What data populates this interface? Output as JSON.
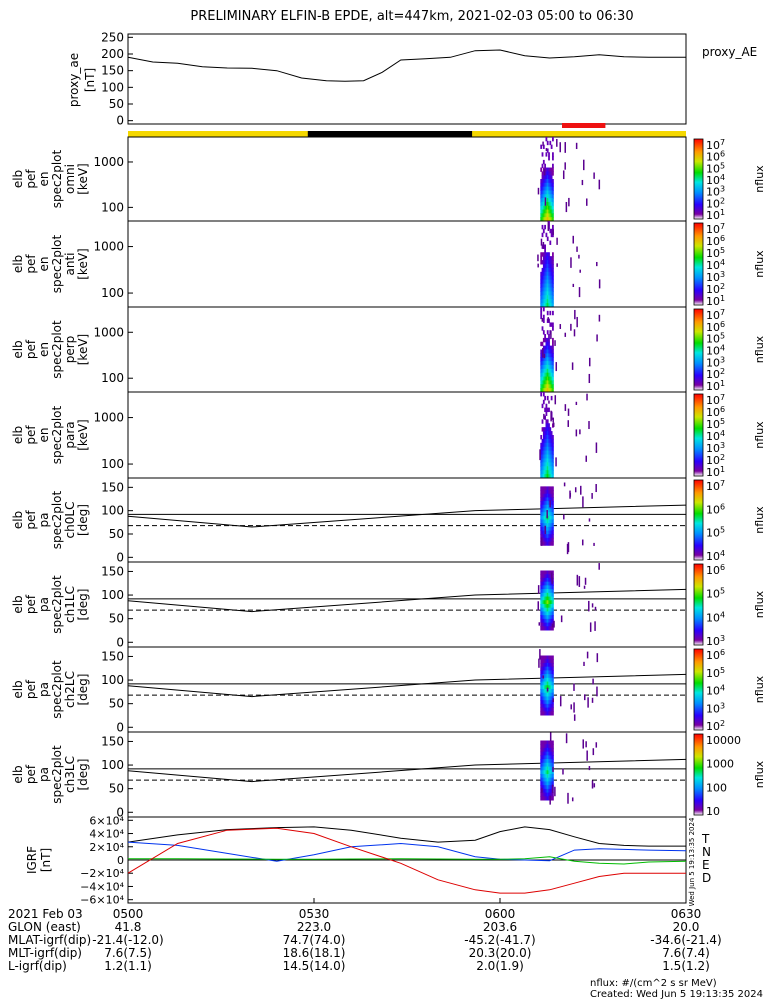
{
  "title": "PRELIMINARY ELFIN-B EPDE, alt=447km, 2021-02-03 05:00 to 06:30",
  "colors": {
    "yellow": "#f5d800",
    "black": "#000000",
    "red": "#ee1111",
    "bx": "#000000",
    "bn": "#0033ee",
    "be": "#00bb00",
    "bd": "#dd0000"
  },
  "chart_data": [
    {
      "type": "line",
      "panel": "proxy_ae",
      "ylabel_lines": [
        "proxy_ae",
        "[nT]"
      ],
      "legend": "proxy_AE",
      "yticks": [
        "250",
        "200",
        "150",
        "100",
        "50",
        "0"
      ],
      "ylim": [
        -10,
        260
      ],
      "x_min": [
        0,
        4,
        8,
        12,
        16,
        20,
        24,
        28,
        32,
        35,
        38,
        41,
        44,
        48,
        52,
        56,
        60,
        64,
        68,
        72,
        76,
        80,
        84,
        88,
        90
      ],
      "values": [
        190,
        176,
        172,
        162,
        158,
        157,
        150,
        128,
        120,
        118,
        120,
        145,
        182,
        186,
        190,
        210,
        212,
        195,
        188,
        192,
        198,
        192,
        190,
        190,
        190
      ]
    },
    {
      "type": "heatmap",
      "panel": "omni",
      "ylabel_lines": [
        "elb",
        "pef",
        "en",
        "spec2plot",
        "omni",
        "[keV]"
      ],
      "yticks": [
        "1000",
        "100"
      ],
      "colorbar_label": "nflux",
      "colorbar_ticks": [
        "10^7",
        "10^6",
        "10^5",
        "10^4",
        "10^3",
        "10^2",
        "10^1"
      ]
    },
    {
      "type": "heatmap",
      "panel": "anti",
      "ylabel_lines": [
        "elb",
        "pef",
        "en",
        "spec2plot",
        "anti",
        "[keV]"
      ],
      "yticks": [
        "1000",
        "100"
      ],
      "colorbar_label": "nflux",
      "colorbar_ticks": [
        "10^7",
        "10^6",
        "10^5",
        "10^4",
        "10^3",
        "10^2",
        "10^1"
      ]
    },
    {
      "type": "heatmap",
      "panel": "perp",
      "ylabel_lines": [
        "elb",
        "pef",
        "en",
        "spec2plot",
        "perp",
        "[keV]"
      ],
      "yticks": [
        "1000",
        "100"
      ],
      "colorbar_label": "nflux",
      "colorbar_ticks": [
        "10^7",
        "10^6",
        "10^5",
        "10^4",
        "10^3",
        "10^2",
        "10^1"
      ]
    },
    {
      "type": "heatmap",
      "panel": "para",
      "ylabel_lines": [
        "elb",
        "pef",
        "en",
        "spec2plot",
        "para",
        "[keV]"
      ],
      "yticks": [
        "1000",
        "100"
      ],
      "colorbar_label": "nflux",
      "colorbar_ticks": [
        "10^7",
        "10^6",
        "10^5",
        "10^4",
        "10^3",
        "10^2",
        "10^1"
      ]
    },
    {
      "type": "heatmap",
      "panel": "ch0LC",
      "ylabel_lines": [
        "elb",
        "pef",
        "pa",
        "spec2plot",
        "ch0LC",
        "[deg]"
      ],
      "yticks": [
        "150",
        "100",
        "50",
        "0"
      ],
      "colorbar_label": "nflux",
      "colorbar_ticks": [
        "10^7",
        "10^6",
        "10^5",
        "10^4"
      ]
    },
    {
      "type": "heatmap",
      "panel": "ch1LC",
      "ylabel_lines": [
        "elb",
        "pef",
        "pa",
        "spec2plot",
        "ch1LC",
        "[deg]"
      ],
      "yticks": [
        "150",
        "100",
        "50",
        "0"
      ],
      "colorbar_label": "nflux",
      "colorbar_ticks": [
        "10^6",
        "10^5",
        "10^4",
        "10^3"
      ]
    },
    {
      "type": "heatmap",
      "panel": "ch2LC",
      "ylabel_lines": [
        "elb",
        "pef",
        "pa",
        "spec2plot",
        "ch2LC",
        "[deg]"
      ],
      "yticks": [
        "150",
        "100",
        "50",
        "0"
      ],
      "colorbar_label": "nflux",
      "colorbar_ticks": [
        "10^6",
        "10^5",
        "10^4",
        "10^3",
        "10^2"
      ]
    },
    {
      "type": "heatmap",
      "panel": "ch3LC",
      "ylabel_lines": [
        "elb",
        "pef",
        "pa",
        "spec2plot",
        "ch3LC",
        "[deg]"
      ],
      "yticks": [
        "150",
        "100",
        "50",
        "0"
      ],
      "colorbar_label": "nflux",
      "colorbar_ticks": [
        "10000",
        "1000",
        "100",
        "10"
      ]
    },
    {
      "type": "line",
      "panel": "IGRF",
      "ylabel_lines": [
        "IGRF",
        "[nT]"
      ],
      "yticks": [
        "6×10⁴",
        "4×10⁴",
        "2×10⁴",
        "0",
        "−2×10⁴",
        "−4×10⁴",
        "−6×10⁴"
      ],
      "ylim": [
        -65000,
        65000
      ],
      "legend": [
        "T",
        "N",
        "E",
        "D"
      ],
      "x_min": [
        0,
        8,
        16,
        24,
        30,
        36,
        44,
        50,
        56,
        60,
        64,
        68,
        72,
        76,
        80,
        84,
        90
      ],
      "series": [
        {
          "name": "T",
          "values": [
            27000,
            38000,
            46000,
            49000,
            50000,
            45000,
            33000,
            27000,
            30000,
            43000,
            50000,
            46000,
            35000,
            25000,
            22000,
            21000,
            21000
          ]
        },
        {
          "name": "N",
          "values": [
            27000,
            22000,
            10000,
            -2000,
            8000,
            20000,
            25000,
            20000,
            5000,
            1000,
            0,
            -1000,
            15000,
            17000,
            16000,
            15000,
            14000
          ]
        },
        {
          "name": "E",
          "values": [
            2000,
            2000,
            1500,
            1000,
            1000,
            1500,
            2000,
            1500,
            1000,
            1000,
            2000,
            5000,
            -2000,
            -5000,
            -6000,
            -3000,
            -2000
          ]
        },
        {
          "name": "D",
          "values": [
            -20000,
            25000,
            45000,
            48000,
            40000,
            20000,
            -5000,
            -30000,
            -45000,
            -50000,
            -50000,
            -45000,
            -35000,
            -25000,
            -20000,
            -20000,
            -20000
          ]
        }
      ]
    }
  ],
  "time_ticks": [
    "0500",
    "0530",
    "0600",
    "0630"
  ],
  "ephemeris": {
    "rows": [
      {
        "label": "2021 Feb 03",
        "values": [
          "0500",
          "0530",
          "0600",
          "0630"
        ]
      },
      {
        "label": "GLON (east)",
        "values": [
          "41.8",
          "223.0",
          "203.6",
          "20.0"
        ]
      },
      {
        "label": "MLAT-igrf(dip)",
        "values": [
          "-21.4(-12.0)",
          "74.7(74.0)",
          "-45.2(-41.7)",
          "-34.6(-21.4)"
        ]
      },
      {
        "label": "MLT-igrf(dip)",
        "values": [
          "7.6(7.5)",
          "18.6(18.1)",
          "20.3(20.0)",
          "7.6(7.4)"
        ]
      },
      {
        "label": "L-igrf(dip)",
        "values": [
          "1.2(1.1)",
          "14.5(14.0)",
          "2.0(1.9)",
          "1.5(1.2)"
        ]
      }
    ]
  },
  "footer": {
    "units": "nflux: #/(cm^2 s sr MeV)",
    "created": "Created: Wed Jun  5 19:13:35 2024",
    "side_stamp": "Wed Jun  5 19:13:35 2024"
  }
}
